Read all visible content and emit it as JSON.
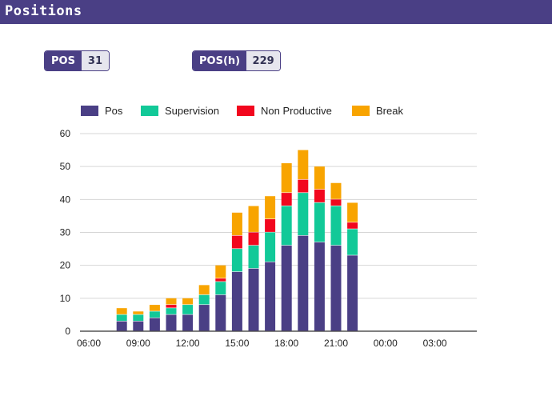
{
  "header": {
    "title": "Positions"
  },
  "kpis": {
    "pos": {
      "label": "POS",
      "value": "31"
    },
    "posh": {
      "label": "POS(h)",
      "value": "229"
    }
  },
  "chart_data": {
    "type": "bar",
    "stacked": true,
    "legend_position": "top-left",
    "grid": true,
    "ylim": [
      0,
      60
    ],
    "y_ticks": [
      0,
      10,
      20,
      30,
      40,
      50,
      60
    ],
    "x_tick_labels": [
      "06:00",
      "09:00",
      "12:00",
      "15:00",
      "18:00",
      "21:00",
      "00:00",
      "03:00"
    ],
    "categories": [
      "06:00",
      "07:00",
      "08:00",
      "09:00",
      "10:00",
      "11:00",
      "12:00",
      "13:00",
      "14:00",
      "15:00",
      "16:00",
      "17:00",
      "18:00",
      "19:00",
      "20:00",
      "21:00",
      "22:00",
      "23:00",
      "00:00",
      "01:00",
      "02:00",
      "03:00",
      "04:00",
      "05:00"
    ],
    "series": [
      {
        "name": "Pos",
        "color": "#4a3f85",
        "values": [
          0,
          0,
          3,
          3,
          4,
          5,
          5,
          8,
          11,
          18,
          19,
          21,
          26,
          29,
          27,
          26,
          23,
          0,
          0,
          0,
          0,
          0,
          0,
          0
        ]
      },
      {
        "name": "Supervision",
        "color": "#12c998",
        "values": [
          0,
          0,
          2,
          2,
          2,
          2,
          3,
          3,
          4,
          7,
          7,
          9,
          12,
          13,
          12,
          12,
          8,
          0,
          0,
          0,
          0,
          0,
          0,
          0
        ]
      },
      {
        "name": "Non Productive",
        "color": "#f2071e",
        "values": [
          0,
          0,
          0,
          0,
          0,
          1,
          0,
          0,
          1,
          4,
          4,
          4,
          4,
          4,
          4,
          2,
          2,
          0,
          0,
          0,
          0,
          0,
          0,
          0
        ]
      },
      {
        "name": "Break",
        "color": "#f8a400",
        "values": [
          0,
          0,
          2,
          1,
          2,
          2,
          2,
          3,
          4,
          7,
          8,
          7,
          9,
          9,
          7,
          5,
          6,
          0,
          0,
          0,
          0,
          0,
          0,
          0
        ]
      }
    ]
  }
}
